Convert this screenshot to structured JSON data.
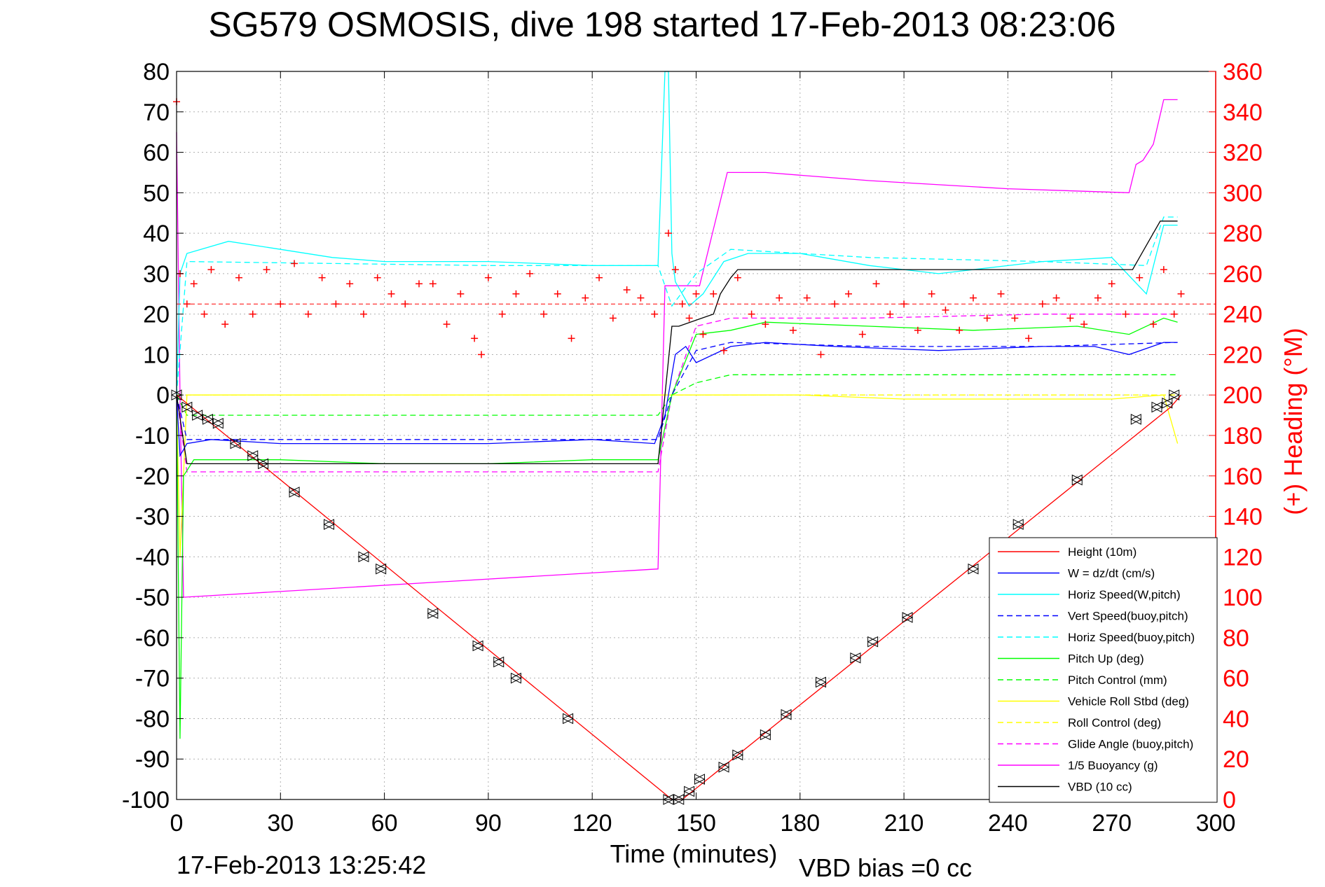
{
  "chart_data": {
    "type": "line",
    "title": "SG579 OSMOSIS, dive 198 started 17-Feb-2013 08:23:06",
    "xlabel": "Time (minutes)",
    "ylabel": "",
    "y2label": "(+) Heading (°M)",
    "footer_left": "17-Feb-2013 13:25:42",
    "footer_right": "VBD bias =0 cc",
    "xlim": [
      0,
      300
    ],
    "ylim": [
      -100,
      80
    ],
    "y2lim": [
      0,
      360
    ],
    "xticks": [
      0,
      30,
      60,
      90,
      120,
      150,
      180,
      210,
      240,
      270,
      300
    ],
    "yticks": [
      -100,
      -90,
      -80,
      -70,
      -60,
      -50,
      -40,
      -30,
      -20,
      -10,
      0,
      10,
      20,
      30,
      40,
      50,
      60,
      70,
      80
    ],
    "y2ticks": [
      0,
      20,
      40,
      60,
      80,
      100,
      120,
      140,
      160,
      180,
      200,
      220,
      240,
      260,
      280,
      300,
      320,
      340,
      360
    ],
    "grid": true,
    "legend_position": "bottom-right",
    "colors": {
      "red": "#ff0000",
      "blue": "#0000ff",
      "cyan": "#00ffff",
      "green": "#00ff00",
      "yellow": "#ffff00",
      "magenta": "#ff00ff",
      "black": "#000000"
    },
    "series": [
      {
        "name": "Height (10m)",
        "color": "#ff0000",
        "dash": false,
        "x": [
          0,
          143,
          146,
          287,
          290
        ],
        "y": [
          0,
          -100,
          -100,
          -3,
          0
        ]
      },
      {
        "name": "W = dz/dt (cm/s)",
        "color": "#0000ff",
        "dash": false,
        "x": [
          0,
          1,
          3,
          10,
          30,
          60,
          90,
          120,
          138,
          141,
          144,
          147,
          150,
          155,
          160,
          170,
          190,
          220,
          250,
          265,
          275,
          285,
          289
        ],
        "y": [
          0,
          -15,
          -12,
          -11,
          -12,
          -12,
          -12,
          -11,
          -12,
          -5,
          10,
          12,
          8,
          10,
          12,
          13,
          12,
          11,
          12,
          12,
          10,
          13,
          13
        ]
      },
      {
        "name": "Horiz Speed(W,pitch)",
        "color": "#00ffff",
        "dash": false,
        "x": [
          0,
          1,
          3,
          15,
          30,
          45,
          60,
          90,
          120,
          139,
          141,
          142,
          143,
          144,
          148,
          152,
          158,
          165,
          180,
          200,
          220,
          250,
          270,
          280,
          285,
          289
        ],
        "y": [
          0,
          30,
          35,
          38,
          36,
          34,
          33,
          33,
          32,
          32,
          80,
          80,
          35,
          28,
          22,
          25,
          33,
          35,
          35,
          32,
          30,
          33,
          34,
          25,
          42,
          42
        ]
      },
      {
        "name": "Vert Speed(buoy,pitch)",
        "color": "#0000ff",
        "dash": true,
        "x": [
          0,
          3,
          90,
          139,
          143,
          150,
          160,
          200,
          250,
          289
        ],
        "y": [
          0,
          -11,
          -11,
          -11,
          0,
          11,
          13,
          12,
          12,
          13
        ]
      },
      {
        "name": "Horiz Speed(buoy,pitch)",
        "color": "#00ffff",
        "dash": true,
        "x": [
          0,
          3,
          90,
          139,
          143,
          150,
          160,
          200,
          250,
          280,
          285,
          289
        ],
        "y": [
          0,
          33,
          32,
          32,
          22,
          30,
          36,
          34,
          33,
          32,
          44,
          44
        ]
      },
      {
        "name": "Pitch Up (deg)",
        "color": "#00ff00",
        "dash": false,
        "x": [
          0,
          1,
          2,
          5,
          30,
          60,
          90,
          120,
          139,
          143,
          150,
          160,
          170,
          200,
          230,
          260,
          275,
          285,
          289
        ],
        "y": [
          0,
          -85,
          -20,
          -16,
          -16,
          -17,
          -17,
          -16,
          -16,
          0,
          15,
          16,
          18,
          17,
          16,
          17,
          15,
          19,
          18
        ]
      },
      {
        "name": "Pitch Control (mm)",
        "color": "#00ff00",
        "dash": true,
        "x": [
          0,
          3,
          30,
          60,
          90,
          120,
          139,
          143,
          150,
          160,
          200,
          250,
          289
        ],
        "y": [
          0,
          -5,
          -5,
          -5,
          -5,
          -5,
          -5,
          0,
          3,
          5,
          5,
          5,
          5
        ]
      },
      {
        "name": "Vehicle Roll Stbd (deg)",
        "color": "#ffff00",
        "dash": false,
        "x": [
          0,
          1,
          3,
          10,
          30,
          60,
          90,
          120,
          139,
          143,
          150,
          180,
          210,
          240,
          270,
          285,
          289
        ],
        "y": [
          0,
          -40,
          0,
          0,
          0,
          0,
          0,
          0,
          0,
          0,
          0,
          0,
          -1,
          -1,
          -1,
          0,
          -12
        ]
      },
      {
        "name": "Roll Control (deg)",
        "color": "#ffff00",
        "dash": true,
        "x": [
          0,
          289
        ],
        "y": [
          0,
          0
        ]
      },
      {
        "name": "Glide Angle (buoy,pitch)",
        "color": "#ff00ff",
        "dash": true,
        "x": [
          0,
          3,
          30,
          60,
          90,
          120,
          139,
          143,
          150,
          160,
          200,
          250,
          289
        ],
        "y": [
          0,
          -19,
          -19,
          -19,
          -19,
          -19,
          -19,
          0,
          17,
          19,
          19,
          20,
          20
        ]
      },
      {
        "name": "1/5 Buoyancy (g)",
        "color": "#ff00ff",
        "dash": false,
        "x": [
          0,
          1,
          2,
          139,
          141,
          151,
          157,
          159,
          170,
          200,
          240,
          275,
          277,
          279,
          282,
          285,
          289
        ],
        "y": [
          65,
          0,
          -50,
          -43,
          27,
          27,
          48,
          55,
          55,
          53,
          51,
          50,
          57,
          58,
          62,
          73,
          73
        ]
      },
      {
        "name": "VBD (10 cc)",
        "color": "#000000",
        "dash": false,
        "x": [
          0,
          3,
          139,
          141,
          143,
          145,
          155,
          157,
          160,
          162,
          276,
          278,
          282,
          284,
          289
        ],
        "y": [
          0,
          -17,
          -17,
          0,
          17,
          17,
          20,
          25,
          29,
          31,
          31,
          34,
          40,
          43,
          43
        ]
      }
    ],
    "heading": {
      "name": "Heading",
      "marker": "+",
      "color": "#ff0000",
      "reference_value": 245,
      "x": [
        0,
        1,
        3,
        5,
        8,
        10,
        14,
        18,
        22,
        26,
        30,
        34,
        38,
        42,
        46,
        50,
        54,
        58,
        62,
        66,
        70,
        74,
        78,
        82,
        86,
        88,
        90,
        94,
        98,
        102,
        106,
        110,
        114,
        118,
        122,
        126,
        130,
        134,
        138,
        142,
        144,
        146,
        148,
        150,
        152,
        155,
        158,
        162,
        166,
        170,
        174,
        178,
        182,
        186,
        190,
        194,
        198,
        202,
        206,
        210,
        214,
        218,
        222,
        226,
        230,
        234,
        238,
        242,
        246,
        250,
        254,
        258,
        262,
        266,
        270,
        274,
        278,
        282,
        285,
        288,
        290
      ],
      "y": [
        345,
        260,
        245,
        255,
        240,
        262,
        235,
        258,
        240,
        262,
        245,
        265,
        240,
        258,
        245,
        255,
        240,
        258,
        250,
        245,
        255,
        255,
        235,
        250,
        228,
        220,
        258,
        240,
        250,
        260,
        240,
        250,
        228,
        248,
        258,
        238,
        252,
        248,
        240,
        280,
        262,
        245,
        238,
        250,
        230,
        250,
        222,
        258,
        240,
        235,
        248,
        232,
        248,
        220,
        245,
        250,
        230,
        255,
        240,
        245,
        232,
        250,
        242,
        232,
        248,
        238,
        250,
        238,
        228,
        245,
        248,
        238,
        235,
        248,
        255,
        240,
        258,
        235,
        262,
        240,
        250
      ]
    },
    "markers": {
      "name": "VBD/Height markers",
      "x": [
        0,
        3,
        6,
        9,
        12,
        17,
        22,
        25,
        34,
        44,
        54,
        59,
        74,
        87,
        93,
        98,
        113,
        142,
        145,
        148,
        151,
        158,
        162,
        170,
        176,
        186,
        196,
        201,
        211,
        230,
        243,
        260,
        277,
        283,
        286,
        288
      ],
      "y": [
        0,
        -3,
        -5,
        -6,
        -7,
        -12,
        -15,
        -17,
        -24,
        -32,
        -40,
        -43,
        -54,
        -62,
        -66,
        -70,
        -80,
        -100,
        -100,
        -98,
        -95,
        -92,
        -89,
        -84,
        -79,
        -71,
        -65,
        -61,
        -55,
        -43,
        -32,
        -21,
        -6,
        -3,
        -2,
        0
      ]
    }
  }
}
